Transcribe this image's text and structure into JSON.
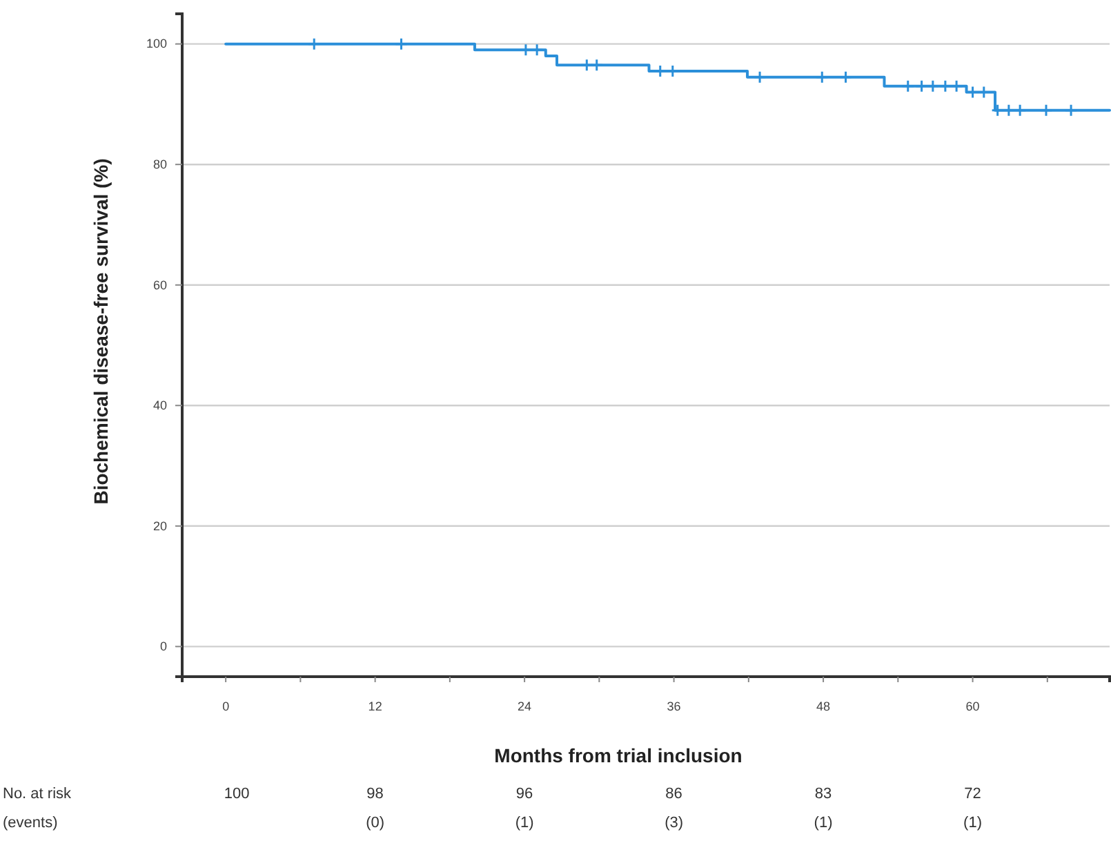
{
  "chart_data": {
    "type": "step",
    "xlabel": "Months from trial inclusion",
    "ylabel": "Biochemical disease-free survival (%)",
    "xlim": [
      -3.5,
      71
    ],
    "ylim": [
      -5,
      105
    ],
    "xticks": [
      0,
      {
        "value": 6,
        "label": null
      },
      12,
      {
        "value": 18,
        "label": null
      },
      24,
      {
        "value": 30,
        "label": null
      },
      36,
      {
        "value": 42,
        "label": null
      },
      48,
      {
        "value": 54,
        "label": null
      },
      60,
      {
        "value": 66,
        "label": null
      }
    ],
    "yticks": [
      0,
      20,
      40,
      60,
      80,
      100
    ],
    "grid": "y",
    "series": [
      {
        "color": "#2b8fd9",
        "x": [
          0,
          20,
          25.7,
          26.6,
          34,
          41.9,
          52.9,
          59.5,
          61.8,
          71
        ],
        "values": [
          100,
          99,
          98,
          96.5,
          95.5,
          94.5,
          93,
          92,
          89,
          89
        ]
      },
      {
        "type": "scatter",
        "marker": "cross",
        "color": "#2b8fd9",
        "x": [
          7.1,
          14.1,
          24.1,
          25,
          29,
          29.8,
          34.9,
          35.9,
          42.9,
          47.9,
          49.8,
          54.8,
          55.9,
          56.8,
          57.8,
          58.7,
          60,
          60.9,
          62,
          62.9,
          63.8,
          65.9,
          67.9
        ],
        "values": [
          100,
          100,
          99,
          99,
          96.5,
          96.5,
          95.5,
          95.5,
          94.5,
          94.5,
          94.5,
          93,
          93,
          93,
          93,
          93,
          92,
          92,
          89,
          89,
          89,
          89,
          89
        ]
      }
    ],
    "annotations": [
      "No. at risk",
      "(events)",
      "100",
      "98",
      "96",
      "86",
      "83",
      "72",
      "(0)",
      "(1)",
      "(3)",
      "(1)",
      "(1)"
    ]
  }
}
